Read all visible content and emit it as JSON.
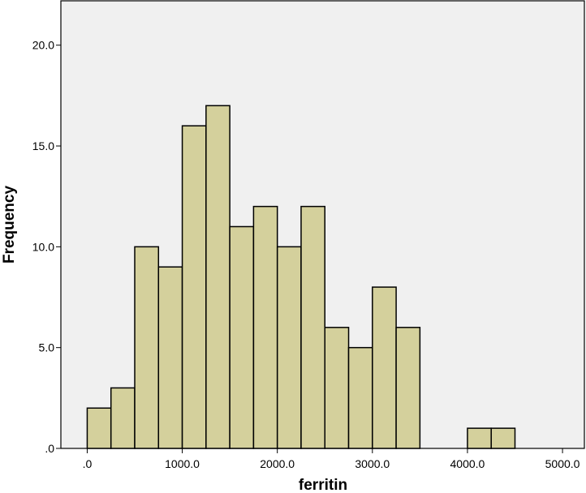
{
  "chart_data": {
    "type": "bar",
    "subtype": "histogram",
    "title": "",
    "xlabel": "ferritin",
    "ylabel": "Frequency",
    "bin_width": 250,
    "bins": [
      {
        "start": 0,
        "end": 250,
        "count": 2
      },
      {
        "start": 250,
        "end": 500,
        "count": 3
      },
      {
        "start": 500,
        "end": 750,
        "count": 10
      },
      {
        "start": 750,
        "end": 1000,
        "count": 9
      },
      {
        "start": 1000,
        "end": 1250,
        "count": 16
      },
      {
        "start": 1250,
        "end": 1500,
        "count": 17
      },
      {
        "start": 1500,
        "end": 1750,
        "count": 11
      },
      {
        "start": 1750,
        "end": 2000,
        "count": 12
      },
      {
        "start": 2000,
        "end": 2250,
        "count": 10
      },
      {
        "start": 2250,
        "end": 2500,
        "count": 12
      },
      {
        "start": 2500,
        "end": 2750,
        "count": 6
      },
      {
        "start": 2750,
        "end": 3000,
        "count": 5
      },
      {
        "start": 3000,
        "end": 3250,
        "count": 8
      },
      {
        "start": 3250,
        "end": 3500,
        "count": 6
      },
      {
        "start": 4000,
        "end": 4250,
        "count": 1
      },
      {
        "start": 4250,
        "end": 4500,
        "count": 1
      }
    ],
    "xlim": [
      -277,
      5230
    ],
    "ylim": [
      0,
      22.2
    ],
    "xticks": [
      0,
      1000,
      2000,
      3000,
      4000,
      5000
    ],
    "xtick_labels": [
      ".0",
      "1000.0",
      "2000.0",
      "3000.0",
      "4000.0",
      "5000.0"
    ],
    "yticks": [
      0,
      5,
      10,
      15,
      20
    ],
    "ytick_labels": [
      ".0",
      "5.0",
      "10.0",
      "15.0",
      "20.0"
    ],
    "grid": false,
    "legend": "none",
    "colors": {
      "bar_fill": "#d4d09c",
      "bar_stroke": "#000000",
      "plot_background": "#f0f0f0",
      "page_background": "#ffffff"
    }
  }
}
